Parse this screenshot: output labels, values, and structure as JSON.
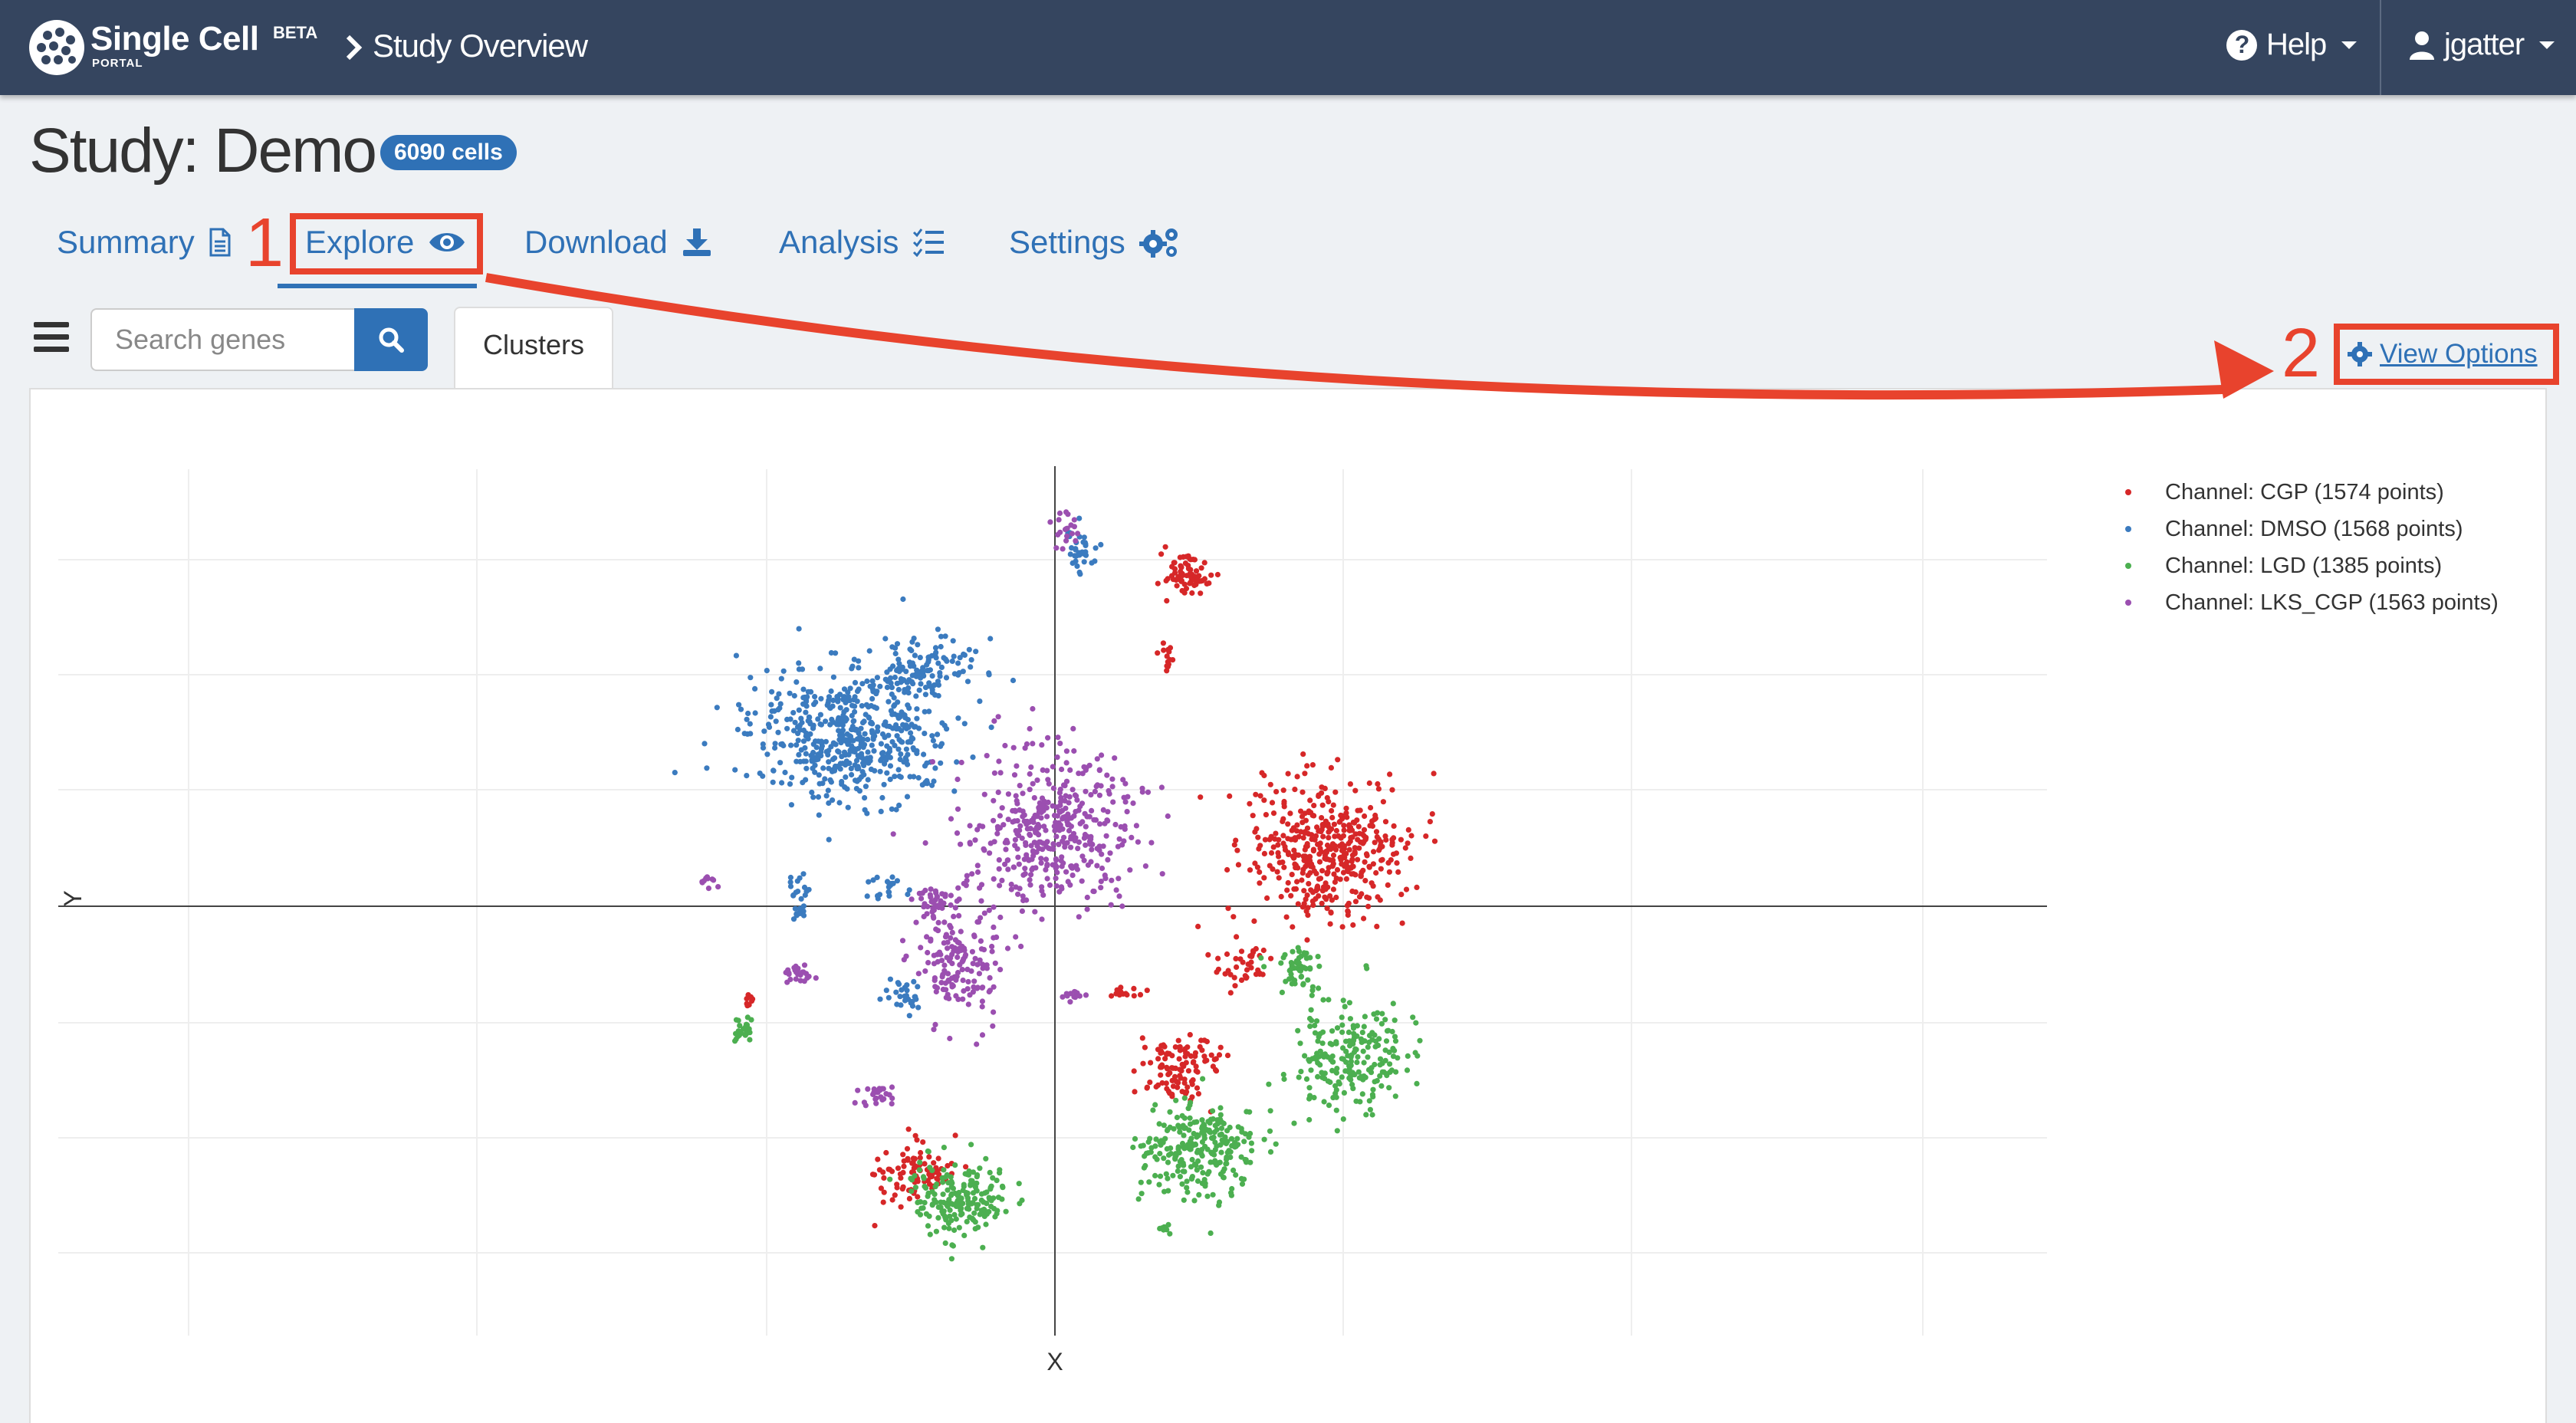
{
  "navbar": {
    "brand": "Single Cell",
    "brand_beta": "BETA",
    "brand_portal": "PORTAL",
    "breadcrumb": "Study Overview",
    "help_label": "Help",
    "user_label": "jgatter"
  },
  "study": {
    "title": "Study: Demo",
    "cells_badge": "6090 cells"
  },
  "tabs": {
    "summary": "Summary",
    "explore": "Explore",
    "download": "Download",
    "analysis": "Analysis",
    "settings": "Settings"
  },
  "toolbar": {
    "search_placeholder": "Search genes",
    "clusters_tab": "Clusters",
    "view_options": "View Options"
  },
  "annotations": {
    "step1": "1",
    "step2": "2",
    "color": "#e8432d"
  },
  "chart_data": {
    "type": "scatter",
    "title": "",
    "xlabel": "X",
    "ylabel": "Y",
    "grid": true,
    "legend_position": "top-right",
    "series": [
      {
        "name": "Channel: CGP (1574 points)",
        "color": "#d62728"
      },
      {
        "name": "Channel: DMSO (1568 points)",
        "color": "#3b7bbf"
      },
      {
        "name": "Channel: LGD (1385 points)",
        "color": "#4caf50"
      },
      {
        "name": "Channel: LKS_CGP (1563 points)",
        "color": "#9b4fb0"
      }
    ]
  }
}
